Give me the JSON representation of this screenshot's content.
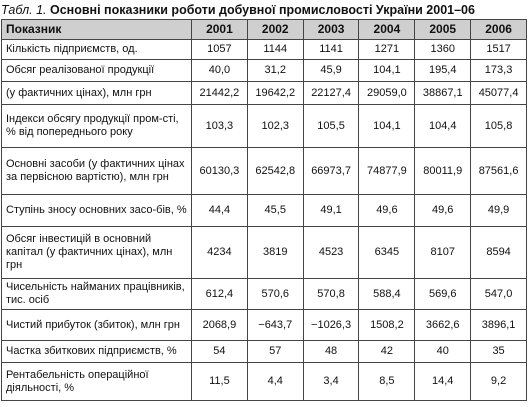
{
  "title": {
    "label": "Табл. 1.",
    "text": "Основні показники роботи добувної промисловості України 2001–06"
  },
  "table": {
    "header": [
      "Показник",
      "2001",
      "2002",
      "2003",
      "2004",
      "2005",
      "2006"
    ],
    "rows": [
      [
        "Кількість підприємств, од.",
        "1057",
        "1144",
        "1141",
        "1271",
        "1360",
        "1517"
      ],
      [
        "Обсяг реалізованої продукції",
        "40,0",
        "31,2",
        "45,9",
        "104,1",
        "195,4",
        "173,3"
      ],
      [
        "(у фактичних цінах), млн грн",
        "21442,2",
        "19642,2",
        "22127,4",
        "29059,0",
        "38867,1",
        "45077,4"
      ],
      [
        "Індекси обсягу продукції пром-сті, % від попереднього року",
        "103,3",
        "102,3",
        "105,5",
        "104,1",
        "104,4",
        "105,8"
      ],
      [
        "Основні засоби (у фактичних цінах за первісною вартістю), млн грн",
        "60130,3",
        "62542,8",
        "66973,7",
        "74877,9",
        "80011,9",
        "87561,6"
      ],
      [
        "Ступінь зносу основних засо-бів, %",
        "44,4",
        "45,5",
        "49,1",
        "49,6",
        "49,6",
        "49,9"
      ],
      [
        "Обсяг інвестицій в основний капітал (у фактичних цінах), млн грн",
        "4234",
        "3819",
        "4523",
        "6345",
        "8107",
        "8594"
      ],
      [
        "Чисельність найманих працівників, тис. осіб",
        "612,4",
        "570,6",
        "570,8",
        "588,4",
        "569,6",
        "547,0"
      ],
      [
        "Чистий прибуток (збиток), млн грн",
        "2068,9",
        "−643,7",
        "−1026,3",
        "1508,2",
        "3662,6",
        "3896,1"
      ],
      [
        "Частка збиткових підприємств, %",
        "54",
        "57",
        "48",
        "42",
        "40",
        "35"
      ],
      [
        "Рентабельність операційної діяльності, %",
        "11,5",
        "4,4",
        "3,4",
        "8,5",
        "14,4",
        "9,2"
      ]
    ]
  }
}
